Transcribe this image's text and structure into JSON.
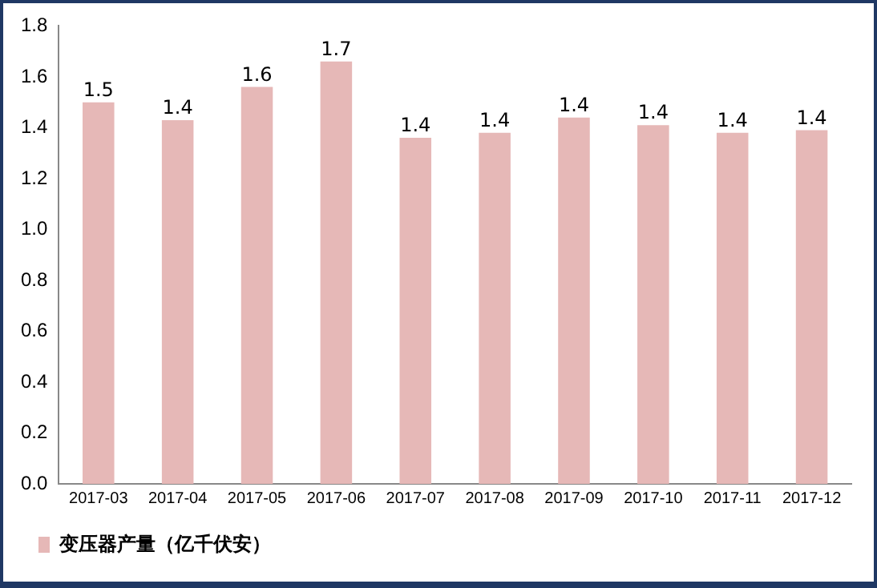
{
  "chart_data": {
    "type": "bar",
    "categories": [
      "2017-03",
      "2017-04",
      "2017-05",
      "2017-06",
      "2017-07",
      "2017-08",
      "2017-09",
      "2017-10",
      "2017-11",
      "2017-12"
    ],
    "series": [
      {
        "name": "变压器产量（亿千伏安）",
        "color": "#e6b8b7",
        "values": [
          1.5,
          1.43,
          1.56,
          1.66,
          1.36,
          1.38,
          1.44,
          1.41,
          1.38,
          1.39
        ],
        "value_labels": [
          "1.5",
          "1.4",
          "1.6",
          "1.7",
          "1.4",
          "1.4",
          "1.4",
          "1.4",
          "1.4",
          "1.4"
        ]
      }
    ],
    "ylim": [
      0,
      1.8
    ],
    "yticks": [
      {
        "value": 0,
        "label": "0.0"
      },
      0.2,
      0.4,
      0.6,
      0.8,
      {
        "value": 1,
        "label": "1.0"
      },
      1.2,
      1.4,
      1.6,
      1.8
    ],
    "grid": false,
    "legend": "bottom left"
  }
}
